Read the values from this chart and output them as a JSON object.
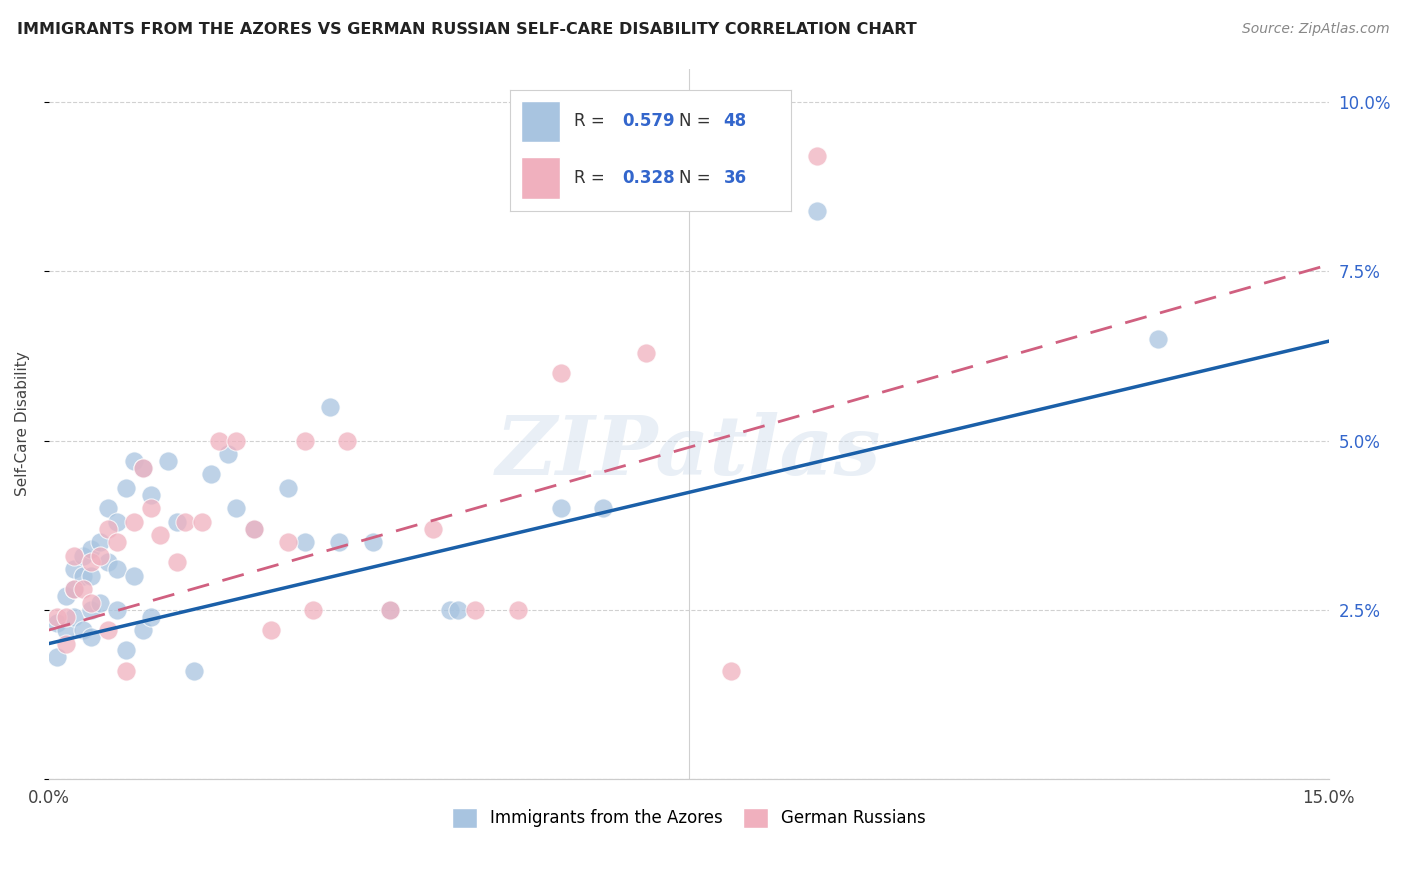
{
  "title": "IMMIGRANTS FROM THE AZORES VS GERMAN RUSSIAN SELF-CARE DISABILITY CORRELATION CHART",
  "source": "Source: ZipAtlas.com",
  "ylabel": "Self-Care Disability",
  "x_min": 0.0,
  "x_max": 0.15,
  "y_min": 0.0,
  "y_max": 0.105,
  "x_ticks": [
    0.0,
    0.03,
    0.06,
    0.09,
    0.12,
    0.15
  ],
  "x_tick_labels": [
    "0.0%",
    "",
    "",
    "",
    "",
    "15.0%"
  ],
  "y_ticks": [
    0.0,
    0.025,
    0.05,
    0.075,
    0.1
  ],
  "y_right_labels": [
    "",
    "2.5%",
    "5.0%",
    "7.5%",
    "10.0%"
  ],
  "blue_R": 0.579,
  "blue_N": 48,
  "pink_R": 0.328,
  "pink_N": 36,
  "blue_dot_color": "#a8c4e0",
  "blue_line_color": "#1a5fa8",
  "pink_dot_color": "#f0b0be",
  "pink_line_color": "#d06080",
  "watermark": "ZIPatlas",
  "legend_label_blue": "Immigrants from the Azores",
  "legend_label_pink": "German Russians",
  "blue_line_intercept": 0.02,
  "blue_line_slope": 0.298,
  "pink_line_intercept": 0.022,
  "pink_line_slope": 0.36,
  "blue_x": [
    0.001,
    0.001,
    0.002,
    0.002,
    0.003,
    0.003,
    0.003,
    0.004,
    0.004,
    0.004,
    0.005,
    0.005,
    0.005,
    0.005,
    0.006,
    0.006,
    0.007,
    0.007,
    0.008,
    0.008,
    0.008,
    0.009,
    0.009,
    0.01,
    0.01,
    0.011,
    0.011,
    0.012,
    0.012,
    0.014,
    0.015,
    0.017,
    0.019,
    0.021,
    0.022,
    0.024,
    0.028,
    0.03,
    0.033,
    0.034,
    0.038,
    0.04,
    0.047,
    0.048,
    0.06,
    0.065,
    0.09,
    0.13
  ],
  "blue_y": [
    0.023,
    0.018,
    0.027,
    0.022,
    0.031,
    0.028,
    0.024,
    0.033,
    0.03,
    0.022,
    0.034,
    0.03,
    0.025,
    0.021,
    0.035,
    0.026,
    0.04,
    0.032,
    0.038,
    0.031,
    0.025,
    0.043,
    0.019,
    0.047,
    0.03,
    0.046,
    0.022,
    0.042,
    0.024,
    0.047,
    0.038,
    0.016,
    0.045,
    0.048,
    0.04,
    0.037,
    0.043,
    0.035,
    0.055,
    0.035,
    0.035,
    0.025,
    0.025,
    0.025,
    0.04,
    0.04,
    0.084,
    0.065
  ],
  "pink_x": [
    0.001,
    0.002,
    0.002,
    0.003,
    0.003,
    0.004,
    0.005,
    0.005,
    0.006,
    0.007,
    0.007,
    0.008,
    0.009,
    0.01,
    0.011,
    0.012,
    0.013,
    0.015,
    0.016,
    0.018,
    0.02,
    0.022,
    0.024,
    0.026,
    0.028,
    0.03,
    0.031,
    0.035,
    0.04,
    0.045,
    0.05,
    0.055,
    0.06,
    0.07,
    0.08,
    0.09
  ],
  "pink_y": [
    0.024,
    0.024,
    0.02,
    0.033,
    0.028,
    0.028,
    0.032,
    0.026,
    0.033,
    0.037,
    0.022,
    0.035,
    0.016,
    0.038,
    0.046,
    0.04,
    0.036,
    0.032,
    0.038,
    0.038,
    0.05,
    0.05,
    0.037,
    0.022,
    0.035,
    0.05,
    0.025,
    0.05,
    0.025,
    0.037,
    0.025,
    0.025,
    0.06,
    0.063,
    0.016,
    0.092
  ]
}
